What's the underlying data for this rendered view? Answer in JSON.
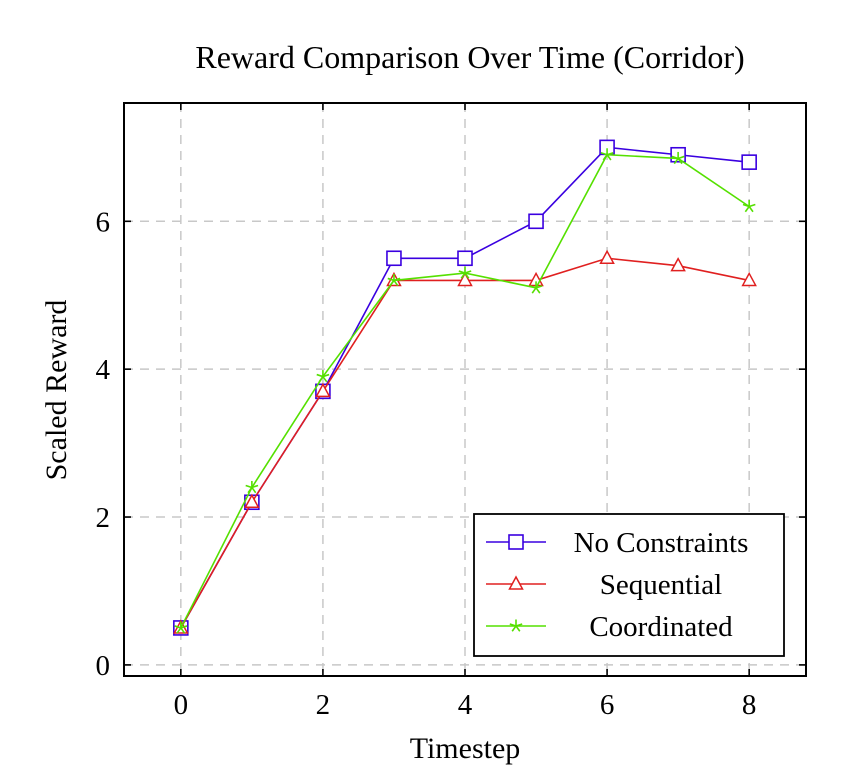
{
  "chart_data": {
    "type": "line",
    "title": "Reward Comparison Over Time (Corridor)",
    "xlabel": "Timestep",
    "ylabel": "Scaled Reward",
    "xlim": [
      -0.8,
      8.8
    ],
    "ylim": [
      -0.15,
      7.6
    ],
    "xticks": [
      0,
      2,
      4,
      6,
      8
    ],
    "yticks": [
      0,
      2,
      4,
      6
    ],
    "grid": true,
    "legend_position": "bottom-right",
    "x": [
      0,
      1,
      2,
      3,
      4,
      5,
      6,
      7,
      8
    ],
    "series": [
      {
        "name": "No Constraints",
        "color": "#3a00e0",
        "marker": "square",
        "values": [
          0.5,
          2.2,
          3.7,
          5.5,
          5.5,
          6.0,
          7.0,
          6.9,
          6.8
        ]
      },
      {
        "name": "Sequential",
        "color": "#e02020",
        "marker": "triangle",
        "values": [
          0.5,
          2.2,
          3.7,
          5.2,
          5.2,
          5.2,
          5.5,
          5.4,
          5.2
        ]
      },
      {
        "name": "Coordinated",
        "color": "#55e000",
        "marker": "star",
        "values": [
          0.5,
          2.4,
          3.9,
          5.2,
          5.3,
          5.1,
          6.9,
          6.85,
          6.2
        ]
      }
    ]
  }
}
